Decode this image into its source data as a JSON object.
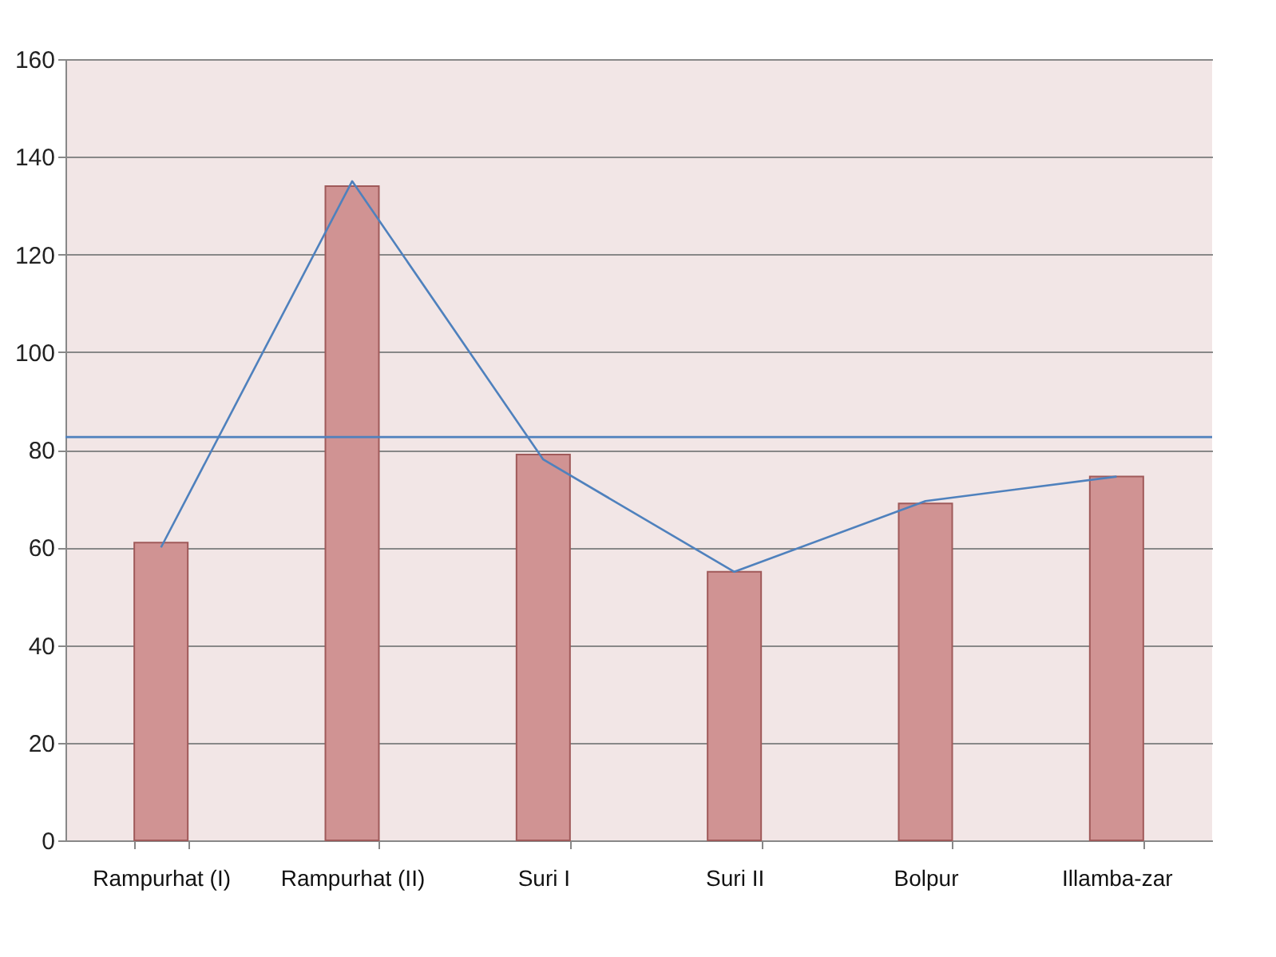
{
  "chart_data": {
    "type": "bar",
    "categories": [
      "Rampurhat (I)",
      "Rampurhat (II)",
      "Suri I",
      "Suri II",
      "Bolpur",
      "Illamba-zar"
    ],
    "series": [
      {
        "color": "#d09393",
        "values": [
          61,
          134,
          79,
          55,
          69,
          74.5
        ]
      },
      {
        "type": "line",
        "color": "#4f81bd",
        "values": [
          60,
          135,
          78,
          55,
          69.5,
          74.5
        ]
      }
    ],
    "ylim": [
      0,
      160
    ],
    "yticks": [
      0,
      20,
      40,
      60,
      80,
      100,
      120,
      140,
      160
    ],
    "grid": "y",
    "ref_lines": [
      {
        "axis": "y",
        "value": 82.6,
        "color": "#4f81bd"
      }
    ]
  }
}
